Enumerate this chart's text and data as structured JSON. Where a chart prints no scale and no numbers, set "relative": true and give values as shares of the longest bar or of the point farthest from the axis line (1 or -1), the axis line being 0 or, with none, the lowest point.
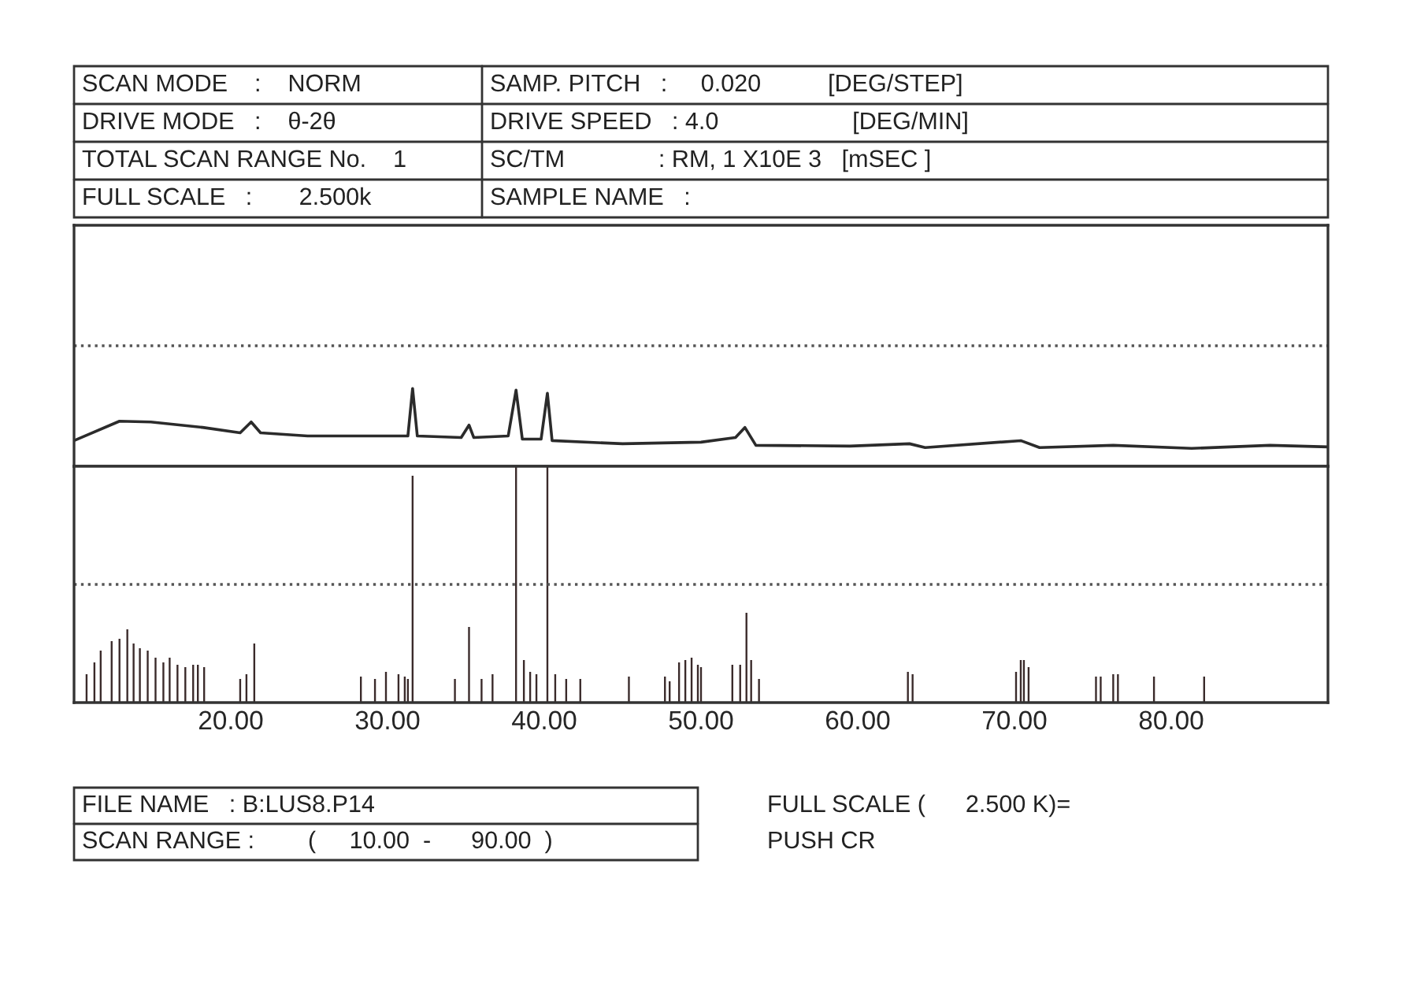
{
  "chart_data": [
    {
      "type": "line",
      "relative": true,
      "xlim": [
        10,
        90
      ],
      "tick_labels": false,
      "grid": false,
      "ref_lines": [
        {
          "axis": "y",
          "value": 1.55,
          "line_style": "dotted",
          "color": "#555555"
        }
      ],
      "annotations": [
        "SCAN MODE    :    NORM",
        "SAMP. PITCH   :     0.020          [DEG/STEP]",
        "DRIVE MODE   :    θ-2θ",
        "DRIVE SPEED   : 4.0                    [DEG/MIN]",
        "TOTAL SCAN RANGE No.    1",
        "SC/TM              : RM, 1 X10E 3   [mSEC ]",
        "FULL SCALE   :       2.500k",
        "SAMPLE NAME   :"
      ],
      "series": [
        {
          "color": "#2b2b2b",
          "x": [
            10.0,
            12.9,
            14.9,
            18.2,
            20.6,
            21.3,
            21.9,
            24.9,
            30.0,
            31.3,
            31.6,
            31.9,
            34.7,
            35.2,
            35.5,
            37.7,
            38.2,
            38.6,
            39.8,
            40.2,
            40.5,
            45.0,
            50.0,
            52.2,
            52.8,
            53.5,
            59.5,
            63.3,
            64.3,
            70.4,
            71.6,
            76.3,
            81.3,
            86.3,
            90.0
          ],
          "values": [
            0.33,
            0.58,
            0.57,
            0.5,
            0.43,
            0.57,
            0.43,
            0.39,
            0.39,
            0.39,
            1.0,
            0.39,
            0.37,
            0.53,
            0.37,
            0.39,
            0.98,
            0.35,
            0.35,
            0.94,
            0.33,
            0.29,
            0.31,
            0.37,
            0.5,
            0.27,
            0.26,
            0.29,
            0.24,
            0.33,
            0.24,
            0.27,
            0.23,
            0.27,
            0.25
          ]
        }
      ]
    },
    {
      "type": "bar",
      "relative": true,
      "xlim": [
        10,
        90
      ],
      "tick_labels": "x",
      "grid": false,
      "xticks": [
        {
          "value": 20,
          "label": "20.00"
        },
        {
          "value": 30,
          "label": "30.00"
        },
        {
          "value": 40,
          "label": "40.00"
        },
        {
          "value": 50,
          "label": "50.00"
        },
        {
          "value": 60,
          "label": "60.00"
        },
        {
          "value": 70,
          "label": "70.00"
        },
        {
          "value": 80,
          "label": "80.00"
        }
      ],
      "ref_lines": [
        {
          "axis": "y",
          "value": 0.5,
          "line_style": "dotted",
          "color": "#555555"
        }
      ],
      "annotations": [
        "FILE NAME   : B:LUS8.P14",
        "SCAN RANGE :        (     10.00  -      90.00  )",
        "FULL SCALE (      2.500 K)=",
        "PUSH CR"
      ],
      "series": [
        {
          "color": "#3a2a2a",
          "x": [
            10.8,
            11.3,
            11.7,
            12.4,
            12.9,
            13.4,
            13.8,
            14.2,
            14.7,
            15.2,
            15.7,
            16.1,
            16.6,
            17.1,
            17.6,
            17.9,
            18.3,
            20.6,
            21.0,
            21.5,
            28.3,
            29.2,
            29.9,
            30.7,
            31.1,
            31.3,
            31.6,
            34.3,
            35.2,
            36.0,
            36.7,
            38.2,
            38.7,
            39.1,
            39.5,
            40.2,
            40.7,
            41.4,
            42.3,
            45.4,
            47.7,
            48.0,
            48.6,
            49.0,
            49.4,
            49.8,
            50.0,
            52.0,
            52.5,
            52.9,
            53.2,
            53.7,
            63.2,
            63.5,
            70.1,
            70.4,
            70.6,
            70.9,
            75.2,
            75.5,
            76.3,
            76.6,
            78.9,
            82.1
          ],
          "values": [
            0.12,
            0.17,
            0.22,
            0.26,
            0.27,
            0.31,
            0.25,
            0.23,
            0.22,
            0.19,
            0.17,
            0.19,
            0.16,
            0.15,
            0.16,
            0.16,
            0.15,
            0.1,
            0.12,
            0.25,
            0.11,
            0.1,
            0.13,
            0.12,
            0.11,
            0.1,
            0.96,
            0.1,
            0.32,
            0.1,
            0.12,
            1.0,
            0.18,
            0.13,
            0.12,
            1.0,
            0.12,
            0.1,
            0.1,
            0.11,
            0.11,
            0.09,
            0.17,
            0.18,
            0.19,
            0.16,
            0.15,
            0.16,
            0.16,
            0.38,
            0.18,
            0.1,
            0.13,
            0.12,
            0.13,
            0.18,
            0.18,
            0.15,
            0.11,
            0.11,
            0.12,
            0.12,
            0.11,
            0.11
          ]
        }
      ]
    }
  ]
}
